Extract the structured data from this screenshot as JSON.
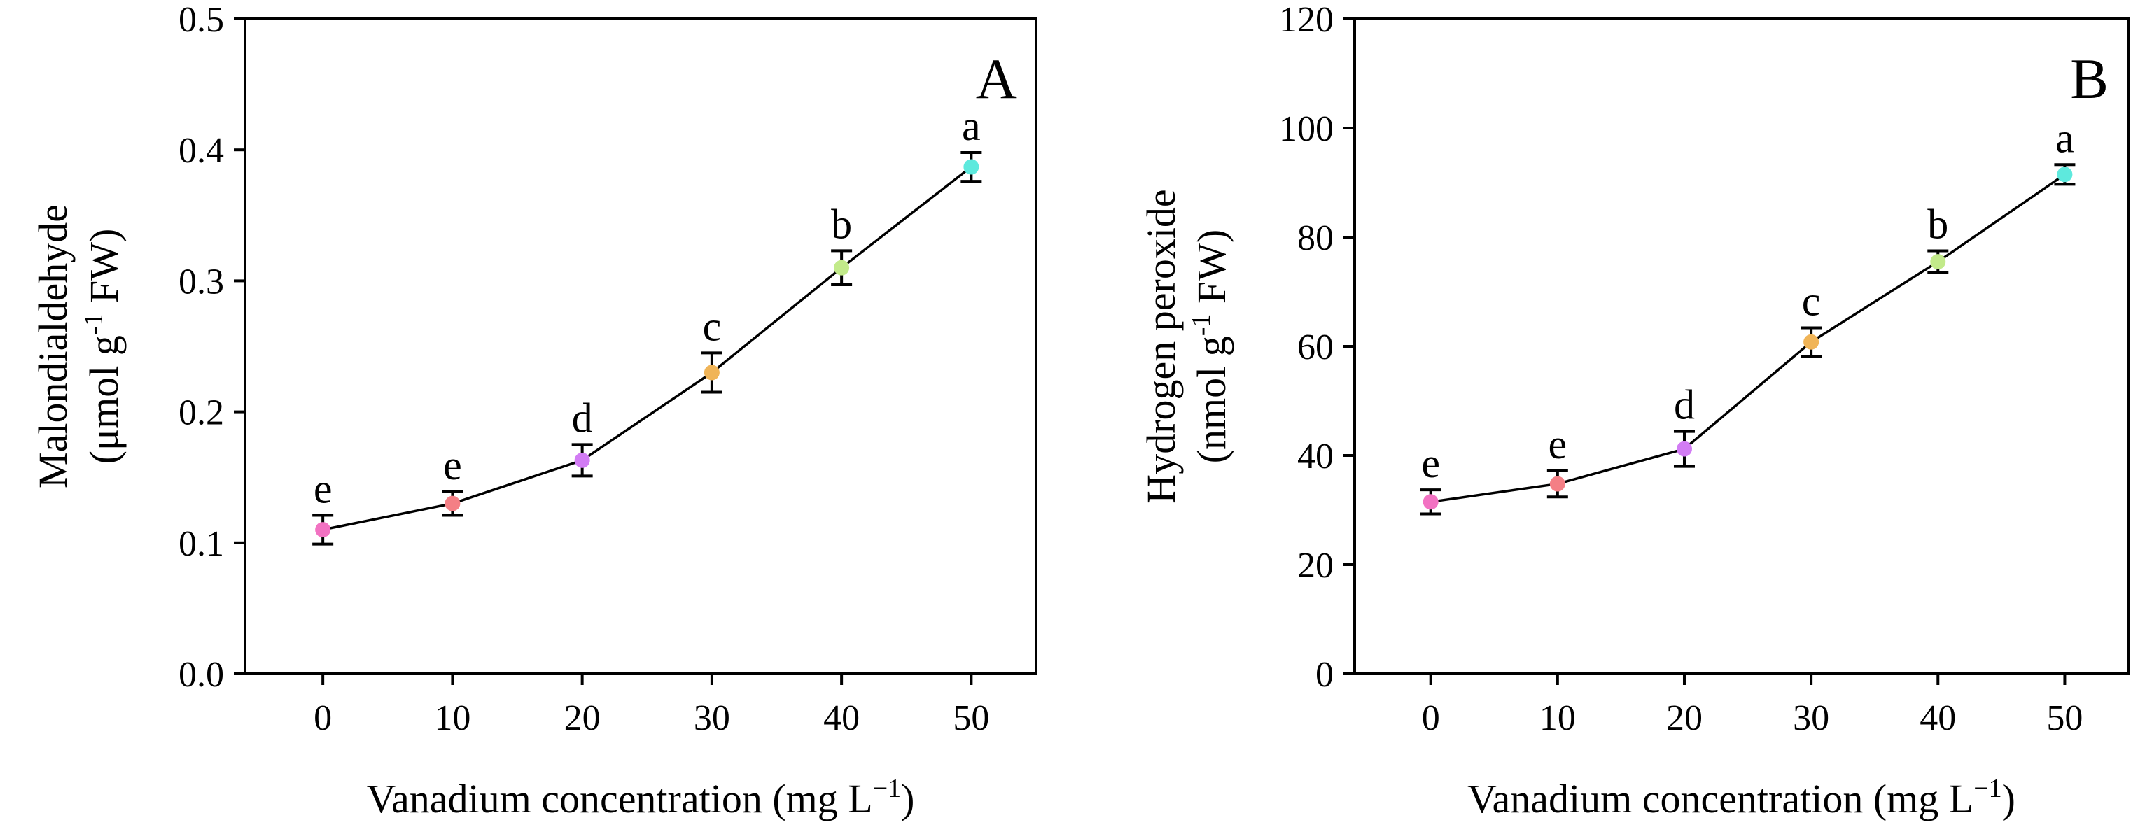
{
  "chart_data": [
    {
      "panel": "A",
      "type": "line",
      "x": [
        0,
        10,
        20,
        30,
        40,
        50
      ],
      "values": [
        0.11,
        0.13,
        0.163,
        0.23,
        0.31,
        0.387
      ],
      "errors": [
        0.011,
        0.009,
        0.012,
        0.015,
        0.013,
        0.011
      ],
      "significance": [
        "e",
        "e",
        "d",
        "c",
        "b",
        "a"
      ],
      "point_colors": [
        "#f272c2",
        "#f47f85",
        "#d27cf4",
        "#f0b457",
        "#c2ea8a",
        "#5ee9dd"
      ],
      "xlabel": "Vanadium concentration (mg L",
      "xlabel_sup": "−1",
      "xlabel_end": ")",
      "ylabel_line1": "Malondialdehyde",
      "ylabel_line2": "(μmol g",
      "ylabel_sup": "-1",
      "ylabel_end": " FW)",
      "xticks": [
        "0",
        "10",
        "20",
        "30",
        "40",
        "50"
      ],
      "yticks": [
        "0.0",
        "0.1",
        "0.2",
        "0.3",
        "0.4",
        "0.5"
      ],
      "ylim": [
        0,
        0.5
      ],
      "xlim": [
        -6,
        55
      ]
    },
    {
      "panel": "B",
      "type": "line",
      "x": [
        0,
        10,
        20,
        30,
        40,
        50
      ],
      "values": [
        31.5,
        34.8,
        41.2,
        60.8,
        75.5,
        91.5
      ],
      "errors": [
        2.2,
        2.4,
        3.2,
        2.6,
        2.0,
        1.8
      ],
      "significance": [
        "e",
        "e",
        "d",
        "c",
        "b",
        "a"
      ],
      "point_colors": [
        "#f272c2",
        "#f47f85",
        "#d27cf4",
        "#f0b457",
        "#c2ea8a",
        "#5ee9dd"
      ],
      "xlabel": "Vanadium concentration (mg L",
      "xlabel_sup": "−1",
      "xlabel_end": ")",
      "ylabel_line1": "Hydrogen peroxide",
      "ylabel_line2": "(nmol g",
      "ylabel_sup": "-1",
      "ylabel_end": " FW)",
      "xticks": [
        "0",
        "10",
        "20",
        "30",
        "40",
        "50"
      ],
      "yticks": [
        "0",
        "20",
        "40",
        "60",
        "80",
        "100",
        "120"
      ],
      "ylim": [
        0,
        120
      ],
      "xlim": [
        -6,
        55
      ]
    }
  ]
}
